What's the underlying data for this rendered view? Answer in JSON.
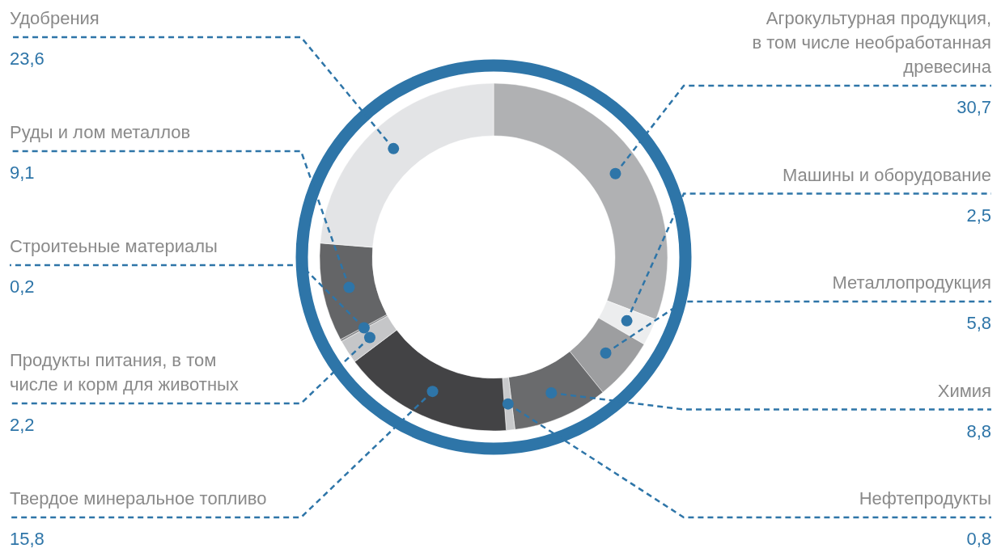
{
  "chart_data": {
    "type": "donut",
    "categories": [
      "Агрокультурная продукция, в том числе необработанная древесина",
      "Машины и оборудование",
      "Металлопродукция",
      "Химия",
      "Нефтепродукты",
      "Твердое минеральное топливо",
      "Продукты питания, в том числе и корм для животных",
      "Строитеьные материалы",
      "Руды и лом металлов",
      "Удобрения"
    ],
    "values": [
      30.7,
      2.5,
      5.8,
      8.8,
      0.8,
      15.8,
      2.2,
      0.2,
      9.1,
      23.6
    ],
    "colors": [
      "#b0b1b3",
      "#ecedee",
      "#9d9ea0",
      "#6a6b6d",
      "#c8c9cb",
      "#434345",
      "#c5c6c8",
      "#8b8c8e",
      "#646567",
      "#e3e4e6"
    ],
    "value_labels": [
      "30,7",
      "2,5",
      "5,8",
      "8,8",
      "0,8",
      "15,8",
      "2,2",
      "0,2",
      "9,1",
      "23,6"
    ],
    "data_labels": true
  }
}
